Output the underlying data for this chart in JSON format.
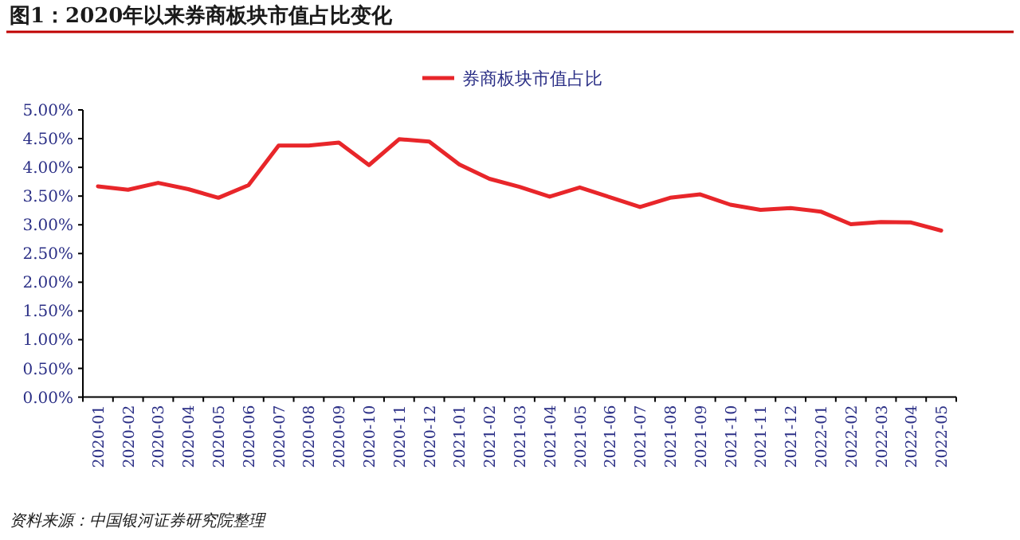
{
  "chart_data": {
    "type": "line",
    "title": "图1：2020年以来券商板块市值占比变化",
    "categories": [
      "2020-01",
      "2020-02",
      "2020-03",
      "2020-04",
      "2020-05",
      "2020-06",
      "2020-07",
      "2020-08",
      "2020-09",
      "2020-10",
      "2020-11",
      "2020-12",
      "2021-01",
      "2021-02",
      "2021-03",
      "2021-04",
      "2021-05",
      "2021-06",
      "2021-07",
      "2021-08",
      "2021-09",
      "2021-10",
      "2021-11",
      "2021-12",
      "2022-01",
      "2022-02",
      "2022-03",
      "2022-04",
      "2022-05"
    ],
    "series": [
      {
        "name": "券商板块市值占比",
        "color": "#e8262a",
        "values": [
          3.67,
          3.61,
          3.73,
          3.62,
          3.47,
          3.69,
          4.38,
          4.38,
          4.43,
          4.04,
          4.49,
          4.45,
          4.05,
          3.8,
          3.66,
          3.49,
          3.65,
          3.48,
          3.31,
          3.47,
          3.53,
          3.35,
          3.26,
          3.29,
          3.23,
          3.01,
          3.05,
          3.04,
          2.9
        ]
      }
    ],
    "ylim": [
      0,
      5
    ],
    "yticks": [
      {
        "value": 0,
        "label": "0.00%"
      },
      {
        "value": 0.5,
        "label": "0.50%"
      },
      {
        "value": 1,
        "label": "1.00%"
      },
      {
        "value": 1.5,
        "label": "1.50%"
      },
      {
        "value": 2,
        "label": "2.00%"
      },
      {
        "value": 2.5,
        "label": "2.50%"
      },
      {
        "value": 3,
        "label": "3.00%"
      },
      {
        "value": 3.5,
        "label": "3.50%"
      },
      {
        "value": 4,
        "label": "4.00%"
      },
      {
        "value": 4.5,
        "label": "4.50%"
      },
      {
        "value": 5,
        "label": "5.00%"
      }
    ],
    "legend": "top",
    "grid": false,
    "marker": "none",
    "line_style": "solid",
    "annotations": [
      "资料来源：中国银河证券研究院整理"
    ]
  }
}
